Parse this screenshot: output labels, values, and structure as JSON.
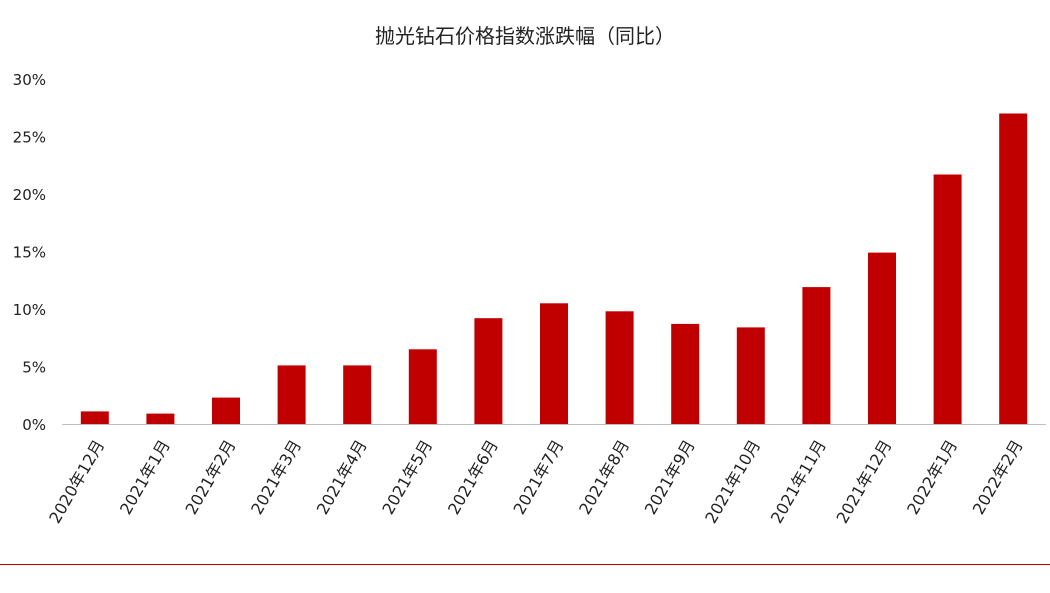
{
  "colors": {
    "bar": "#c00000",
    "axis": "#bfbfbf",
    "footer_line": "#c00000",
    "text": "#222222"
  },
  "chart_data": {
    "type": "bar",
    "title": "抛光钻石价格指数涨跌幅（同比）",
    "xlabel": "",
    "ylabel": "",
    "ylim": [
      0,
      30
    ],
    "yticks": [
      0,
      5,
      10,
      15,
      20,
      25,
      30
    ],
    "ytick_labels": [
      "0%",
      "5%",
      "10%",
      "15%",
      "20%",
      "25%",
      "30%"
    ],
    "grid": false,
    "legend": "none",
    "categories": [
      "2020年12月",
      "2021年1月",
      "2021年2月",
      "2021年3月",
      "2021年4月",
      "2021年5月",
      "2021年6月",
      "2021年7月",
      "2021年8月",
      "2021年9月",
      "2021年10月",
      "2021年11月",
      "2021年12月",
      "2022年1月",
      "2022年2月"
    ],
    "values": [
      1.1,
      0.9,
      2.3,
      5.1,
      5.1,
      6.5,
      9.2,
      10.5,
      9.8,
      8.7,
      8.4,
      11.9,
      14.9,
      21.7,
      27.0
    ]
  }
}
